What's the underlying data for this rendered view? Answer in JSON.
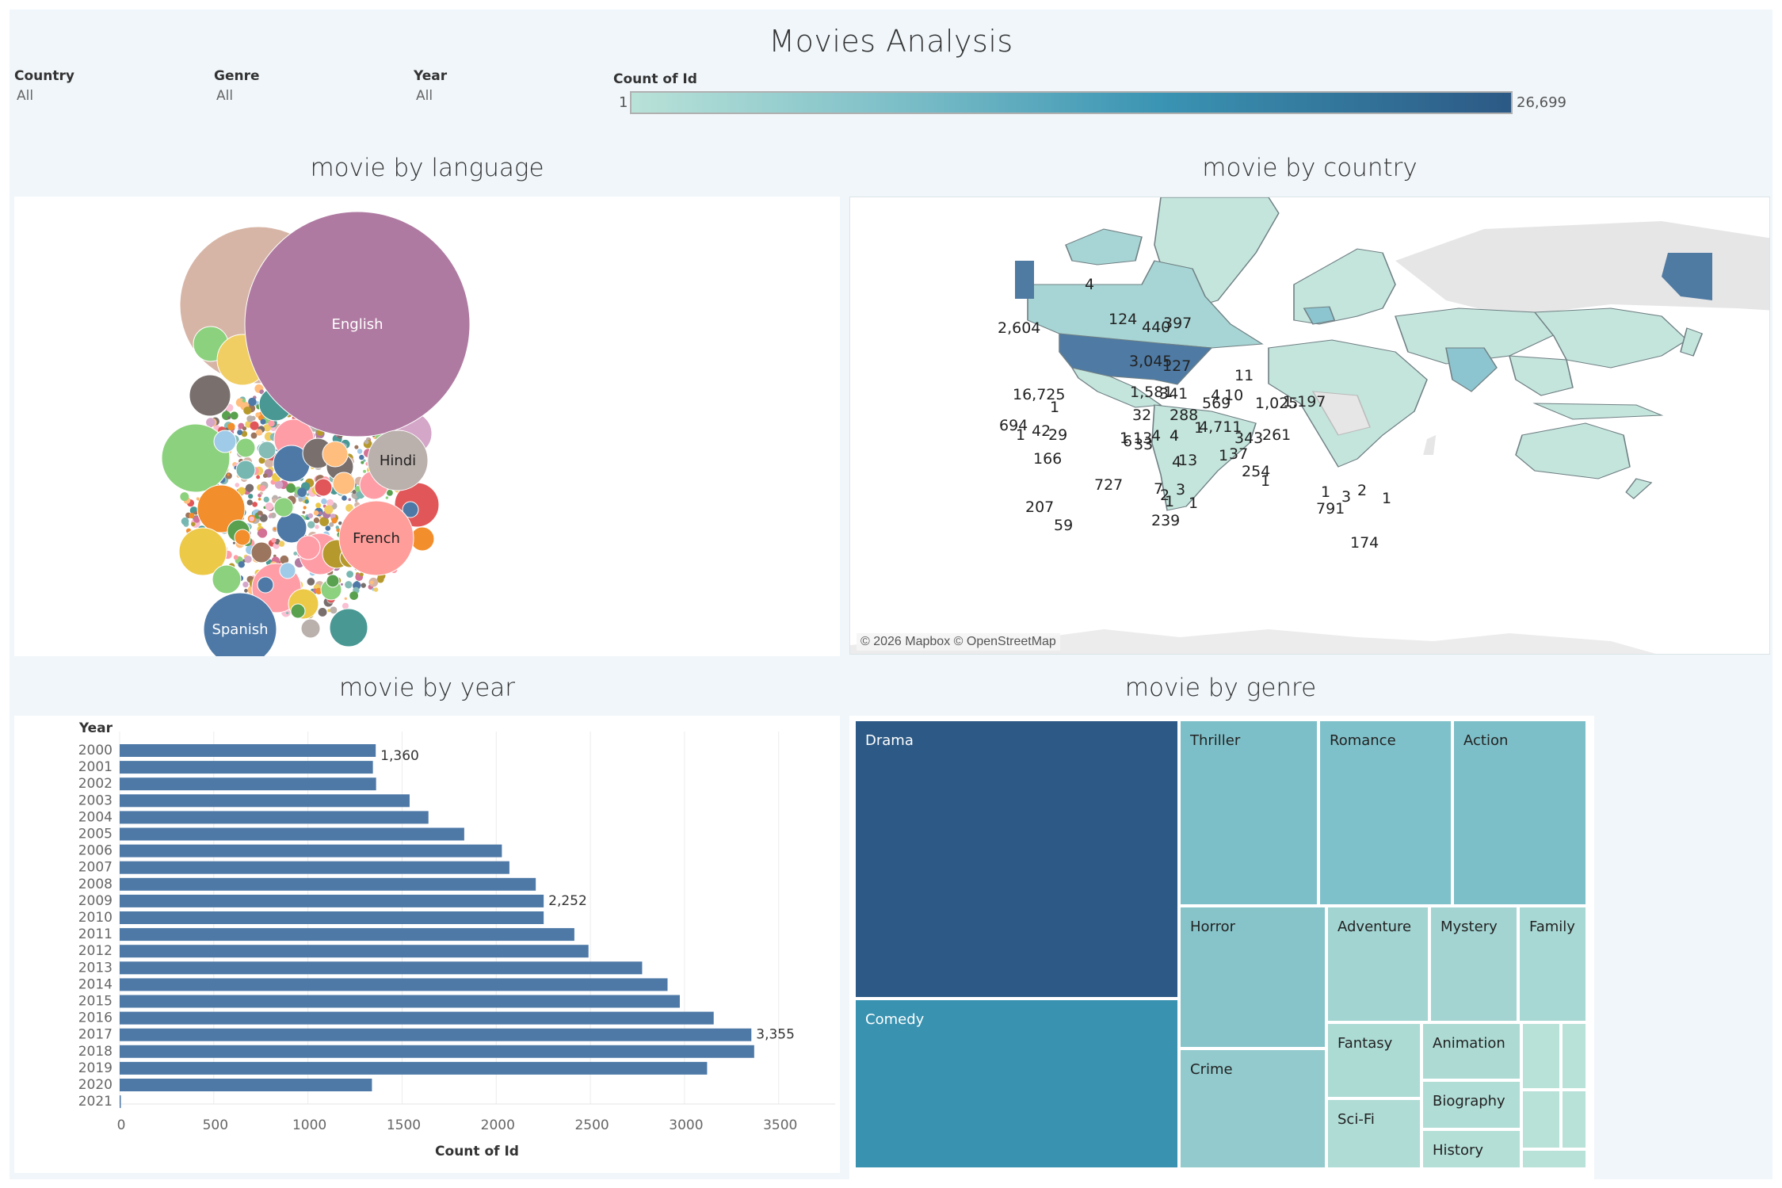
{
  "dashboard": {
    "title": "Movies Analysis"
  },
  "filters": [
    {
      "label": "Country",
      "value": "All"
    },
    {
      "label": "Genre",
      "value": "All"
    },
    {
      "label": "Year",
      "value": "All"
    }
  ],
  "color_legend": {
    "title": "Count of Id",
    "min_label": "1",
    "max_label": "26,699",
    "min_color": "#b9e2d8",
    "mid_color": "#3a94b3",
    "max_color": "#2c5985"
  },
  "sections": {
    "language": "movie by language",
    "country": "movie by country",
    "year": "movie by year",
    "genre": "movie by genre"
  },
  "map": {
    "attribution": "© 2026 Mapbox © OpenStreetMap",
    "labels": [
      "2,604",
      "16,725",
      "4",
      "124",
      "440",
      "397",
      "3,045",
      "127",
      "1,581",
      "341",
      "1",
      "694",
      "1",
      "42",
      "29",
      "166",
      "727",
      "207",
      "59",
      "1",
      "13",
      "32",
      "288",
      "6",
      "33",
      "4",
      "4",
      "4",
      "10",
      "569",
      "4",
      "1",
      "4,711",
      "1",
      "37",
      "11",
      "1,025",
      "1,197",
      "343",
      "261",
      "254",
      "1",
      "791",
      "1",
      "3",
      "2",
      "1",
      "174",
      "4",
      "13",
      "7",
      "2",
      "1",
      "3",
      "239",
      "1"
    ]
  },
  "chart_data": [
    {
      "type": "bubble",
      "title": "movie by language",
      "labeled_bubbles": [
        {
          "label": "English",
          "color": "#af7aa1"
        },
        {
          "label": "Hindi",
          "color": "#bab0ac"
        },
        {
          "label": "French",
          "color": "#ff9d9a"
        },
        {
          "label": "Spanish",
          "color": "#4e79a7"
        }
      ],
      "palette": [
        "#4e79a7",
        "#f28e2b",
        "#e15759",
        "#76b7b2",
        "#59a14f",
        "#edc948",
        "#b07aa1",
        "#ff9da7",
        "#9c755f",
        "#bab0ac",
        "#8cd17d",
        "#499894",
        "#86bcb6",
        "#d37295",
        "#fabfd2",
        "#b6992d",
        "#f1ce63",
        "#a0cbe8",
        "#ffbe7d",
        "#79706e",
        "#d4a6c8",
        "#d7b5a6"
      ]
    },
    {
      "type": "bar",
      "orientation": "horizontal",
      "title": "movie by year",
      "categories": [
        "2000",
        "2001",
        "2002",
        "2003",
        "2004",
        "2005",
        "2006",
        "2007",
        "2008",
        "2009",
        "2010",
        "2011",
        "2012",
        "2013",
        "2014",
        "2015",
        "2016",
        "2017",
        "2018",
        "2019",
        "2020",
        "2021"
      ],
      "values": [
        1360,
        1345,
        1362,
        1540,
        1640,
        1830,
        2030,
        2070,
        2210,
        2252,
        2252,
        2415,
        2490,
        2775,
        2910,
        2975,
        3155,
        3355,
        3370,
        3120,
        1340,
        3
      ],
      "data_labels": [
        {
          "category": "2000",
          "text": "1,360"
        },
        {
          "category": "2009",
          "text": "2,252"
        },
        {
          "category": "2017",
          "text": "3,355"
        }
      ],
      "xlabel": "Count of Id",
      "ylabel": "Year",
      "xticks": [
        "0",
        "500",
        "1000",
        "1500",
        "2000",
        "2500",
        "3000",
        "3500"
      ],
      "xlim": [
        0,
        3800
      ],
      "bar_color": "#4e79a7",
      "grid": true
    },
    {
      "type": "treemap",
      "title": "movie by genre",
      "cells": [
        {
          "label": "Drama",
          "color": "#2c5985",
          "text_color": "#ffffff"
        },
        {
          "label": "Comedy",
          "color": "#3892b0",
          "text_color": "#ffffff"
        },
        {
          "label": "Thriller",
          "color": "#7dbfc8",
          "text_color": "#222222"
        },
        {
          "label": "Romance",
          "color": "#7fc1ca",
          "text_color": "#222222"
        },
        {
          "label": "Action",
          "color": "#7dbfc8",
          "text_color": "#222222"
        },
        {
          "label": "Horror",
          "color": "#87c4ca",
          "text_color": "#222222"
        },
        {
          "label": "Crime",
          "color": "#92cacd",
          "text_color": "#222222"
        },
        {
          "label": "Adventure",
          "color": "#a2d4d2",
          "text_color": "#222222"
        },
        {
          "label": "Mystery",
          "color": "#a3d4d2",
          "text_color": "#222222"
        },
        {
          "label": "Family",
          "color": "#a8d8d3",
          "text_color": "#222222"
        },
        {
          "label": "Fantasy",
          "color": "#acdbd4",
          "text_color": "#222222"
        },
        {
          "label": "Sci-Fi",
          "color": "#afdcd5",
          "text_color": "#222222"
        },
        {
          "label": "Animation",
          "color": "#addbd4",
          "text_color": "#222222"
        },
        {
          "label": "Biography",
          "color": "#b0ddd6",
          "text_color": "#222222"
        },
        {
          "label": "History",
          "color": "#b3dfd7",
          "text_color": "#222222"
        }
      ],
      "unlabeled_color": "#b8e1d7"
    }
  ]
}
